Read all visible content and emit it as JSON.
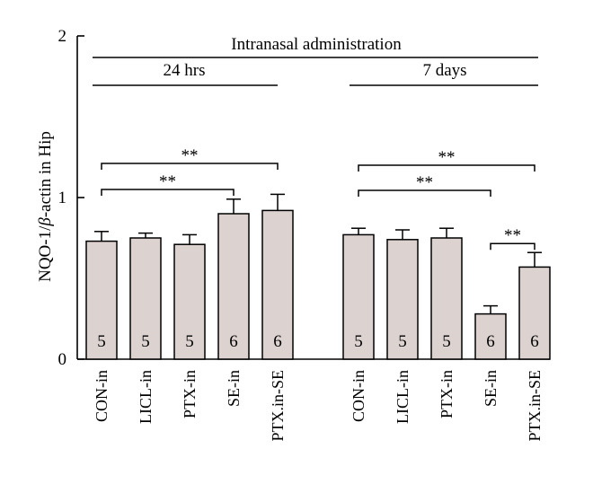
{
  "chart_data": {
    "type": "bar",
    "title": "Intranasal administration",
    "ylabel_parts": [
      "NQO-1/",
      "β",
      "-actin in Hip"
    ],
    "ylim": [
      0,
      2
    ],
    "yticks": [
      "0",
      "1",
      "2"
    ],
    "groups": [
      {
        "label": "24 hrs",
        "categories": [
          "CON-in",
          "LICL-in",
          "PTX-in",
          "SE-in",
          "PTX.in-SE"
        ],
        "values": [
          0.73,
          0.75,
          0.71,
          0.9,
          0.92
        ],
        "errors": [
          0.06,
          0.03,
          0.06,
          0.09,
          0.1
        ],
        "n": [
          "5",
          "5",
          "5",
          "6",
          "6"
        ]
      },
      {
        "label": "7 days",
        "categories": [
          "CON-in",
          "LICL-in",
          "PTX-in",
          "SE-in",
          "PTX.in-SE"
        ],
        "values": [
          0.77,
          0.74,
          0.75,
          0.28,
          0.57
        ],
        "errors": [
          0.04,
          0.06,
          0.06,
          0.05,
          0.09
        ],
        "n": [
          "5",
          "5",
          "5",
          "6",
          "6"
        ]
      }
    ],
    "significance": [
      {
        "group": 0,
        "from": 0,
        "to": 3,
        "label": "**"
      },
      {
        "group": 0,
        "from": 0,
        "to": 4,
        "label": "**"
      },
      {
        "group": 1,
        "from": 0,
        "to": 3,
        "label": "**"
      },
      {
        "group": 1,
        "from": 0,
        "to": 4,
        "label": "**"
      },
      {
        "group": 1,
        "from": 3,
        "to": 4,
        "label": "**"
      }
    ],
    "bar_color": "#dcd2d0",
    "grid": false
  }
}
